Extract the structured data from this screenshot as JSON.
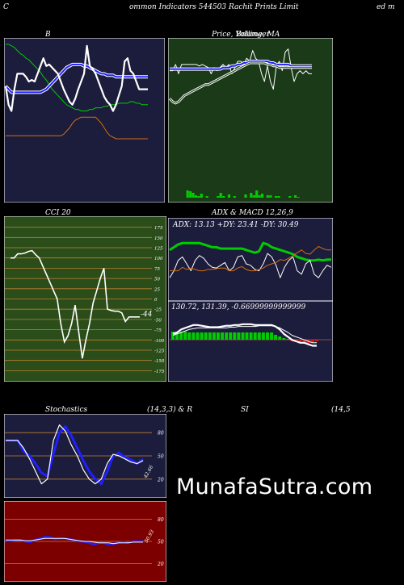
{
  "header": {
    "left": "C",
    "center": "ommon  Indicators 544503 Rachit Prints Limit",
    "right": "ed m"
  },
  "colors": {
    "navy": "#1c1c3c",
    "darkgreen": "#1a3a18",
    "olive": "#2a4d1a",
    "maroon": "#7d0000",
    "blue": "#2020ff",
    "green": "#00cc00",
    "orange": "#d07010",
    "grid_orange": "#c08030"
  },
  "chart_data": [
    {
      "id": "bb",
      "type": "line",
      "title": "B",
      "series": [
        {
          "role": "upper",
          "color": "#00cc00",
          "values": [
            99,
            99,
            98,
            97,
            95,
            93,
            92,
            90,
            89,
            87,
            85,
            83,
            81,
            78,
            76,
            73,
            70,
            68,
            66,
            64,
            62,
            60,
            59,
            58,
            57,
            57,
            56,
            56,
            56,
            57,
            57,
            58,
            58,
            58,
            59,
            59,
            60,
            60,
            60,
            61,
            61,
            61,
            61,
            62,
            62,
            61,
            61,
            60,
            60,
            60
          ]
        },
        {
          "role": "middle",
          "color": "#2020ff",
          "values": [
            72,
            70,
            68,
            68,
            68,
            68,
            68,
            68,
            68,
            68,
            68,
            68,
            68,
            69,
            70,
            72,
            74,
            76,
            78,
            80,
            82,
            84,
            85,
            86,
            86,
            86,
            86,
            85,
            85,
            84,
            83,
            82,
            81,
            80,
            80,
            79,
            79,
            79,
            78,
            78,
            78,
            78,
            78,
            78,
            78,
            78,
            78,
            78,
            78,
            78
          ]
        },
        {
          "role": "lower",
          "color": "#d07010",
          "values": [
            40,
            40,
            40,
            40,
            40,
            40,
            40,
            40,
            40,
            40,
            40,
            40,
            40,
            40,
            40,
            40,
            40,
            40,
            40,
            40,
            41,
            43,
            45,
            48,
            50,
            51,
            52,
            52,
            52,
            52,
            52,
            52,
            50,
            48,
            45,
            42,
            40,
            39,
            38,
            38,
            38,
            38,
            38,
            38,
            38,
            38,
            38,
            38,
            38,
            38
          ]
        },
        {
          "role": "price",
          "color": "#ffffff",
          "values": [
            72,
            60,
            56,
            70,
            80,
            80,
            80,
            78,
            75,
            76,
            75,
            80,
            85,
            90,
            85,
            86,
            84,
            82,
            80,
            75,
            70,
            66,
            62,
            60,
            64,
            70,
            75,
            80,
            98,
            85,
            83,
            80,
            75,
            70,
            65,
            62,
            60,
            56,
            60,
            66,
            72,
            88,
            90,
            82,
            80,
            75,
            70,
            70,
            70,
            70
          ]
        }
      ]
    },
    {
      "id": "price",
      "type": "line",
      "title": "Price,  Volume,  MA",
      "title_overlay": "Bollinger",
      "series": [
        {
          "role": "price",
          "color": "#ffffff",
          "values": [
            82,
            82,
            86,
            80,
            86,
            86,
            86,
            86,
            86,
            86,
            85,
            86,
            85,
            84,
            80,
            84,
            82,
            84,
            86,
            84,
            86,
            80,
            84,
            88,
            88,
            86,
            90,
            88,
            95,
            90,
            88,
            80,
            75,
            85,
            75,
            70,
            85,
            88,
            82,
            94,
            96,
            84,
            75,
            80,
            82,
            80,
            82,
            80,
            80
          ]
        },
        {
          "role": "ma_fast",
          "color": "#2020ff",
          "values": [
            83,
            83,
            83,
            83,
            83,
            83,
            83,
            83,
            83,
            83,
            83,
            83,
            83,
            83,
            83,
            83,
            83,
            83,
            84,
            84,
            84,
            85,
            85,
            86,
            86,
            87,
            87,
            88,
            88,
            88,
            88,
            88,
            88,
            88,
            87,
            87,
            86,
            86,
            86,
            86,
            86,
            85,
            85,
            85,
            85,
            85,
            85,
            85,
            85
          ]
        },
        {
          "role": "ma_slow",
          "color": "#ffffff",
          "values": [
            64,
            62,
            61,
            62,
            64,
            66,
            67,
            68,
            69,
            70,
            71,
            72,
            73,
            73,
            74,
            75,
            76,
            77,
            78,
            79,
            80,
            81,
            82,
            83,
            84,
            85,
            86,
            87,
            87,
            87,
            87,
            87,
            87,
            86,
            86,
            85,
            85,
            84,
            84,
            84,
            84,
            84,
            84,
            84,
            84,
            84,
            84,
            84,
            84
          ]
        }
      ],
      "volume": [
        0,
        0,
        0,
        9,
        8,
        6,
        3,
        2,
        5,
        0,
        2,
        0,
        0,
        0,
        2,
        6,
        2,
        0,
        4,
        0,
        2,
        0,
        0,
        0,
        4,
        0,
        6,
        3,
        9,
        3,
        5,
        0,
        3,
        3,
        0,
        2,
        2,
        0,
        0,
        0,
        2,
        0,
        3,
        1,
        0,
        0,
        0,
        0,
        0
      ]
    },
    {
      "id": "cci",
      "type": "line",
      "title": "CCI 20",
      "yticks": [
        175,
        150,
        125,
        100,
        75,
        50,
        25,
        0,
        -25,
        -50,
        -75,
        -100,
        -125,
        -150,
        -175
      ],
      "ylim": [
        -190,
        190
      ],
      "last_label": "-44",
      "values": [
        100,
        100,
        110,
        110,
        112,
        116,
        118,
        108,
        100,
        80,
        60,
        40,
        20,
        0,
        -60,
        -105,
        -90,
        -60,
        -15,
        -80,
        -145,
        -100,
        -60,
        -10,
        20,
        50,
        75,
        -25,
        -28,
        -30,
        -30,
        -34,
        -55,
        -44,
        -44,
        -44,
        -44
      ]
    },
    {
      "id": "adx",
      "type": "line",
      "title": "ADX  & MACD 12,26,9",
      "adx_label": "ADX: 13.13  +DY: 23.41  -DY: 30.49",
      "macd_label": "130.72,  131.39,  -0.66999999999999",
      "adx_series": [
        {
          "role": "adx",
          "color": "#00cc00",
          "values": [
            70,
            74,
            78,
            80,
            80,
            80,
            80,
            80,
            78,
            76,
            74,
            74,
            72,
            72,
            72,
            72,
            72,
            72,
            70,
            68,
            66,
            68,
            80,
            78,
            74,
            72,
            70,
            68,
            66,
            64,
            60,
            58,
            56,
            55,
            55,
            56,
            55,
            56,
            56
          ]
        },
        {
          "role": "plus_di",
          "color": "#ffffff",
          "values": [
            30,
            40,
            55,
            60,
            50,
            40,
            55,
            62,
            58,
            50,
            45,
            44,
            48,
            52,
            40,
            45,
            60,
            62,
            50,
            48,
            42,
            40,
            50,
            65,
            60,
            48,
            30,
            45,
            55,
            60,
            40,
            35,
            50,
            55,
            35,
            30,
            40,
            48,
            45
          ]
        },
        {
          "role": "minus_di",
          "color": "#d07010",
          "values": [
            40,
            40,
            40,
            45,
            42,
            44,
            42,
            40,
            40,
            42,
            42,
            43,
            44,
            44,
            40,
            40,
            44,
            46,
            42,
            40,
            40,
            42,
            44,
            48,
            50,
            52,
            56,
            55,
            58,
            62,
            66,
            70,
            65,
            64,
            70,
            75,
            72,
            70,
            70
          ]
        }
      ],
      "macd_series": [
        {
          "role": "macd",
          "color": "#ffffff",
          "values": [
            60,
            62,
            66,
            68,
            70,
            72,
            72,
            71,
            70,
            69,
            69,
            69,
            70,
            71,
            71,
            72,
            72,
            73,
            73,
            73,
            72,
            72,
            72,
            72,
            72,
            70,
            66,
            60,
            56,
            52,
            50,
            48,
            48,
            46,
            44,
            44
          ]
        },
        {
          "role": "signal",
          "color": "#ffffff",
          "values": [
            58,
            60,
            62,
            64,
            66,
            67,
            68,
            68,
            68,
            68,
            68,
            68,
            68,
            68,
            69,
            69,
            70,
            70,
            70,
            70,
            70,
            71,
            71,
            71,
            71,
            70,
            68,
            65,
            62,
            58,
            56,
            54,
            52,
            50,
            48,
            48
          ]
        },
        {
          "role": "histogram",
          "values": [
            10,
            10,
            10,
            10,
            9,
            9,
            9,
            9,
            9,
            9,
            9,
            9,
            9,
            9,
            9,
            9,
            9,
            9,
            9,
            9,
            9,
            9,
            9,
            9,
            9,
            6,
            4,
            2,
            1,
            -2,
            -3,
            -4,
            -4,
            -4,
            -3,
            -2
          ]
        }
      ]
    },
    {
      "id": "stoch",
      "type": "line",
      "title": "Stochastics",
      "params": "(14,3,3) & R",
      "yticks": [
        80,
        50,
        20
      ],
      "last_label": "42.66",
      "series": [
        {
          "role": "k",
          "color": "#2020ff",
          "values": [
            70,
            70,
            70,
            56,
            50,
            40,
            28,
            24,
            52,
            80,
            88,
            76,
            60,
            44,
            30,
            20,
            14,
            30,
            50,
            54,
            48,
            45,
            40,
            46
          ]
        },
        {
          "role": "d",
          "color": "#ffffff",
          "values": [
            70,
            70,
            70,
            60,
            46,
            30,
            14,
            20,
            70,
            90,
            82,
            64,
            50,
            32,
            20,
            14,
            20,
            40,
            52,
            50,
            46,
            42,
            40,
            44
          ]
        }
      ]
    },
    {
      "id": "rsi",
      "type": "line",
      "title": "SI",
      "params": "(14,5",
      "yticks": [
        80,
        50,
        20
      ],
      "last_label": "50.93",
      "series": [
        {
          "role": "rsi",
          "color": "#2020ff",
          "values": [
            50,
            51,
            52,
            52,
            50,
            49,
            52,
            54,
            56,
            56,
            53,
            54,
            54,
            53,
            52,
            50,
            50,
            48,
            46,
            48,
            48,
            46,
            47,
            48,
            49,
            48,
            50,
            50,
            50
          ]
        },
        {
          "role": "ma",
          "color": "#ffffff",
          "values": [
            52,
            52,
            52,
            52,
            51,
            51,
            52,
            53,
            54,
            54,
            54,
            54,
            54,
            53,
            52,
            51,
            50,
            50,
            49,
            48,
            48,
            48,
            47,
            48,
            48,
            48,
            49,
            49,
            49
          ]
        }
      ]
    }
  ],
  "watermark": "MunafaSutra.com"
}
